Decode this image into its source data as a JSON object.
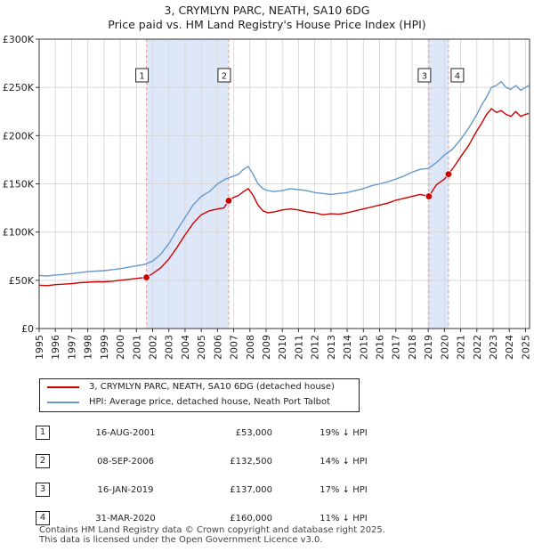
{
  "title": "3, CRYMLYN PARC, NEATH, SA10 6DG",
  "subtitle": "Price paid vs. HM Land Registry's House Price Index (HPI)",
  "colors": {
    "price": "#cc0000",
    "hpi": "#6699cc",
    "shade": "#dde7f7",
    "marker_line": "#e0a0a0"
  },
  "chart_data": {
    "type": "line",
    "title": "3, CRYMLYN PARC, NEATH, SA10 6DG",
    "subtitle": "Price paid vs. HM Land Registry's House Price Index (HPI)",
    "xlim": [
      1995,
      2025.25
    ],
    "ylim": [
      0,
      300000
    ],
    "x_ticks": [
      1995,
      1996,
      1997,
      1998,
      1999,
      2000,
      2001,
      2002,
      2003,
      2004,
      2005,
      2006,
      2007,
      2008,
      2009,
      2010,
      2011,
      2012,
      2013,
      2014,
      2015,
      2016,
      2017,
      2018,
      2019,
      2020,
      2021,
      2022,
      2023,
      2024,
      2025
    ],
    "y_ticks": [
      {
        "value": 0,
        "label": "£0"
      },
      {
        "value": 50000,
        "label": "£50K"
      },
      {
        "value": 100000,
        "label": "£100K"
      },
      {
        "value": 150000,
        "label": "£150K"
      },
      {
        "value": 200000,
        "label": "£200K"
      },
      {
        "value": 250000,
        "label": "£250K"
      },
      {
        "value": 300000,
        "label": "£300K"
      }
    ],
    "grid": true,
    "shaded_periods": [
      [
        2001.62,
        2006.69
      ],
      [
        2019.04,
        2020.25
      ]
    ],
    "series": [
      {
        "name": "3, CRYMLYN PARC, NEATH, SA10 6DG (detached house)",
        "color": "#cc0000",
        "x": [
          1995.0,
          1995.5,
          1996.0,
          1996.5,
          1997.0,
          1997.5,
          1998.0,
          1998.5,
          1999.0,
          1999.5,
          2000.0,
          2000.5,
          2001.0,
          2001.62,
          2002.0,
          2002.5,
          2003.0,
          2003.5,
          2004.0,
          2004.5,
          2005.0,
          2005.5,
          2006.0,
          2006.4,
          2006.69,
          2007.0,
          2007.3,
          2007.6,
          2007.9,
          2008.2,
          2008.5,
          2008.8,
          2009.1,
          2009.5,
          2010.0,
          2010.5,
          2011.0,
          2011.5,
          2012.0,
          2012.5,
          2013.0,
          2013.5,
          2014.0,
          2014.5,
          2015.0,
          2015.5,
          2016.0,
          2016.5,
          2017.0,
          2017.5,
          2018.0,
          2018.5,
          2019.04,
          2019.5,
          2020.0,
          2020.25,
          2020.6,
          2021.0,
          2021.5,
          2022.0,
          2022.3,
          2022.6,
          2022.9,
          2023.2,
          2023.5,
          2023.8,
          2024.1,
          2024.4,
          2024.7,
          2025.0,
          2025.2
        ],
        "y": [
          45000,
          44500,
          45500,
          46000,
          46500,
          47500,
          48000,
          48500,
          48500,
          49000,
          50000,
          51000,
          52000,
          53000,
          57000,
          63000,
          72000,
          84000,
          97000,
          109000,
          118000,
          122000,
          124000,
          125000,
          132500,
          136000,
          138000,
          142000,
          145000,
          138000,
          128000,
          122000,
          120000,
          121000,
          123000,
          124000,
          123000,
          121000,
          120000,
          118000,
          119000,
          118500,
          120000,
          122000,
          124000,
          126000,
          128000,
          130000,
          133000,
          135000,
          137000,
          139000,
          137000,
          149000,
          155000,
          160000,
          168000,
          178000,
          190000,
          205000,
          213000,
          222000,
          228000,
          224000,
          226000,
          222000,
          220000,
          225000,
          220000,
          222000,
          223000
        ]
      },
      {
        "name": "HPI: Average price, detached house, Neath Port Talbot",
        "color": "#6699cc",
        "x": [
          1995.0,
          1995.5,
          1996.0,
          1996.5,
          1997.0,
          1997.5,
          1998.0,
          1998.5,
          1999.0,
          1999.5,
          2000.0,
          2000.5,
          2001.0,
          2001.5,
          2002.0,
          2002.5,
          2003.0,
          2003.5,
          2004.0,
          2004.5,
          2005.0,
          2005.5,
          2006.0,
          2006.5,
          2007.0,
          2007.3,
          2007.6,
          2007.9,
          2008.2,
          2008.5,
          2008.8,
          2009.1,
          2009.5,
          2010.0,
          2010.5,
          2011.0,
          2011.5,
          2012.0,
          2012.5,
          2013.0,
          2013.5,
          2014.0,
          2014.5,
          2015.0,
          2015.5,
          2016.0,
          2016.5,
          2017.0,
          2017.5,
          2018.0,
          2018.5,
          2019.0,
          2019.5,
          2020.0,
          2020.5,
          2021.0,
          2021.5,
          2022.0,
          2022.3,
          2022.6,
          2022.9,
          2023.2,
          2023.5,
          2023.8,
          2024.1,
          2024.4,
          2024.7,
          2025.0,
          2025.2
        ],
        "y": [
          55000,
          54500,
          55500,
          56000,
          57000,
          58000,
          59000,
          59500,
          60000,
          61000,
          62000,
          63500,
          65000,
          66500,
          70000,
          77000,
          88000,
          102000,
          115000,
          128000,
          137000,
          142000,
          150000,
          155000,
          158000,
          160000,
          165000,
          168000,
          160000,
          150000,
          145000,
          143000,
          142000,
          143000,
          145000,
          144000,
          143000,
          141000,
          140000,
          139000,
          140000,
          141000,
          143000,
          145000,
          148000,
          150000,
          152000,
          155000,
          158000,
          162000,
          165000,
          166000,
          172000,
          180000,
          186000,
          196000,
          208000,
          222000,
          232000,
          240000,
          250000,
          252000,
          256000,
          250000,
          248000,
          252000,
          247000,
          250000,
          252000
        ]
      }
    ],
    "transactions": [
      {
        "num": "1",
        "date": "16-AUG-2001",
        "x": 2001.62,
        "price": 53000,
        "price_label": "£53,000",
        "hpi": "19% ↓ HPI"
      },
      {
        "num": "2",
        "date": "08-SEP-2006",
        "x": 2006.69,
        "price": 132500,
        "price_label": "£132,500",
        "hpi": "14% ↓ HPI"
      },
      {
        "num": "3",
        "date": "16-JAN-2019",
        "x": 2019.04,
        "price": 137000,
        "price_label": "£137,000",
        "hpi": "17% ↓ HPI"
      },
      {
        "num": "4",
        "date": "31-MAR-2020",
        "x": 2020.25,
        "price": 160000,
        "price_label": "£160,000",
        "hpi": "11% ↓ HPI"
      }
    ]
  },
  "legend": {
    "price_label": "3, CRYMLYN PARC, NEATH, SA10 6DG (detached house)",
    "hpi_label": "HPI: Average price, detached house, Neath Port Talbot"
  },
  "footer": {
    "line1": "Contains HM Land Registry data © Crown copyright and database right 2025.",
    "line2": "This data is licensed under the Open Government Licence v3.0."
  }
}
